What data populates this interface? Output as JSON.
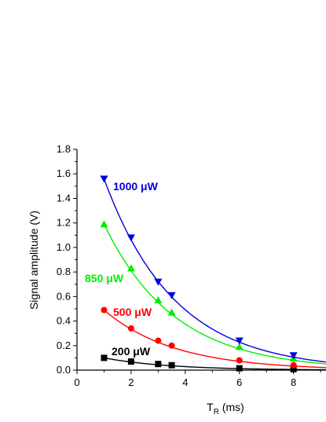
{
  "chart_data": {
    "type": "scatter",
    "title": "",
    "xlabel": "T",
    "xlabel_sub": "R",
    "xlabel_unit": " (ms)",
    "ylabel": "Signal amplitude (V)",
    "xlim": [
      0,
      9.2
    ],
    "ylim": [
      0,
      1.8
    ],
    "x_ticks": [
      0,
      2,
      4,
      6,
      8
    ],
    "x_tick_labels": [
      "0",
      "2",
      "4",
      "6",
      "8"
    ],
    "y_ticks": [
      0,
      0.2,
      0.4,
      0.6,
      0.8,
      1.0,
      1.2,
      1.4,
      1.6,
      1.8
    ],
    "y_tick_labels": [
      "0.0",
      "0.2",
      "0.4",
      "0.6",
      "0.8",
      "1.0",
      "1.2",
      "1.4",
      "1.6",
      "1.8"
    ],
    "grid": false,
    "series": [
      {
        "name": "200 μW",
        "color": "#000000",
        "marker": "square",
        "x": [
          1,
          2,
          3,
          3.5,
          6,
          8
        ],
        "y": [
          0.1,
          0.07,
          0.05,
          0.04,
          0.015,
          0.008
        ],
        "fit_tau_ms": 2.4
      },
      {
        "name": "500 μW",
        "color": "#ff0000",
        "marker": "circle",
        "x": [
          1,
          2,
          3,
          3.5,
          6,
          8
        ],
        "y": [
          0.49,
          0.34,
          0.24,
          0.2,
          0.08,
          0.04
        ],
        "fit_tau_ms": 2.6
      },
      {
        "name": "850 μW",
        "color": "#00ee00",
        "marker": "triangle-up",
        "x": [
          1,
          2,
          3,
          3.5,
          6,
          8
        ],
        "y": [
          1.19,
          0.83,
          0.57,
          0.47,
          0.19,
          0.095
        ],
        "fit_tau_ms": 2.6
      },
      {
        "name": "1000 μW",
        "color": "#0000dd",
        "marker": "triangle-down",
        "x": [
          1,
          2,
          3,
          3.5,
          6,
          8
        ],
        "y": [
          1.56,
          1.08,
          0.72,
          0.61,
          0.24,
          0.12
        ],
        "fit_tau_ms": 2.6
      }
    ]
  }
}
